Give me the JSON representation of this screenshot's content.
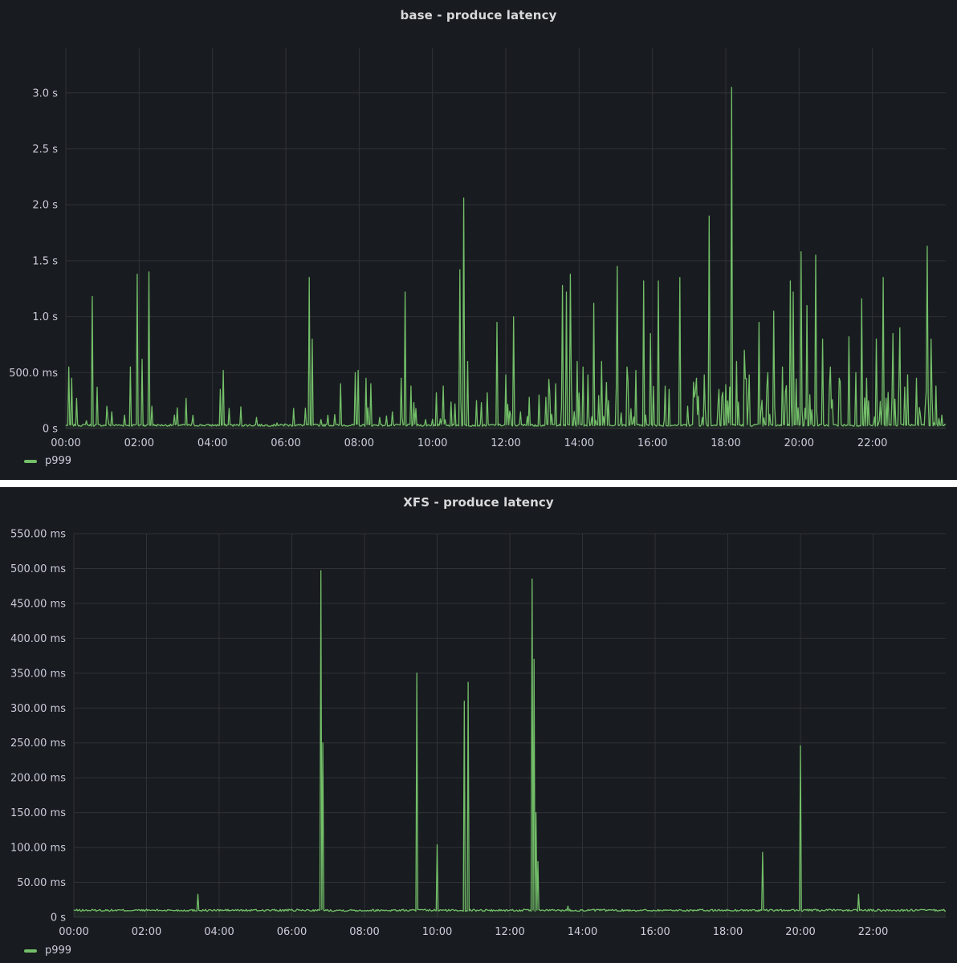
{
  "colors": {
    "series": "#73bf69",
    "grid": "#2f3237",
    "text": "#ccccdc",
    "panel_bg": "#181b1f"
  },
  "chart_data": [
    {
      "type": "line",
      "title": "base - produce latency",
      "xlabel": "",
      "ylabel": "",
      "x_ticks": [
        "00:00",
        "02:00",
        "04:00",
        "06:00",
        "08:00",
        "10:00",
        "12:00",
        "14:00",
        "16:00",
        "18:00",
        "20:00",
        "22:00"
      ],
      "y_ticks": [
        "0 s",
        "500.0 ms",
        "1.0 s",
        "1.5 s",
        "2.0 s",
        "2.5 s",
        "3.0 s"
      ],
      "y_unit": "s",
      "xlim_hours": [
        0,
        24
      ],
      "ylim": [
        0,
        3.4
      ],
      "grid": true,
      "legend": "bottom-left",
      "series": [
        {
          "name": "p999",
          "baseline": 0.02,
          "peaks": [
            [
              0.07,
              0.55
            ],
            [
              0.15,
              0.45
            ],
            [
              0.28,
              0.27
            ],
            [
              0.55,
              0.07
            ],
            [
              0.72,
              1.18
            ],
            [
              0.85,
              0.37
            ],
            [
              1.13,
              0.2
            ],
            [
              1.25,
              0.15
            ],
            [
              1.6,
              0.12
            ],
            [
              1.75,
              0.55
            ],
            [
              1.95,
              1.38
            ],
            [
              2.07,
              0.62
            ],
            [
              2.26,
              1.4
            ],
            [
              2.35,
              0.2
            ],
            [
              2.95,
              0.12
            ],
            [
              3.28,
              0.27
            ],
            [
              3.45,
              0.05
            ],
            [
              4.2,
              0.35
            ],
            [
              4.3,
              0.52
            ],
            [
              4.45,
              0.18
            ],
            [
              5.2,
              0.1
            ],
            [
              5.75,
              0.05
            ],
            [
              6.2,
              0.18
            ],
            [
              6.65,
              1.35
            ],
            [
              6.72,
              0.8
            ],
            [
              6.95,
              0.08
            ],
            [
              7.15,
              0.12
            ],
            [
              7.5,
              0.4
            ],
            [
              7.9,
              0.5
            ],
            [
              7.97,
              0.52
            ],
            [
              8.2,
              0.45
            ],
            [
              8.32,
              0.4
            ],
            [
              8.55,
              0.1
            ],
            [
              8.9,
              0.15
            ],
            [
              9.15,
              0.45
            ],
            [
              9.25,
              1.22
            ],
            [
              9.4,
              0.38
            ],
            [
              9.55,
              0.18
            ],
            [
              9.8,
              0.08
            ],
            [
              10.1,
              0.32
            ],
            [
              10.3,
              0.38
            ],
            [
              10.6,
              0.22
            ],
            [
              10.75,
              1.42
            ],
            [
              10.85,
              2.06
            ],
            [
              10.95,
              0.6
            ],
            [
              11.2,
              0.25
            ],
            [
              11.5,
              0.32
            ],
            [
              11.75,
              0.95
            ],
            [
              12.0,
              0.48
            ],
            [
              12.2,
              1.0
            ],
            [
              12.4,
              0.15
            ],
            [
              12.65,
              0.28
            ],
            [
              12.9,
              0.3
            ],
            [
              13.1,
              0.28
            ],
            [
              13.35,
              0.4
            ],
            [
              13.55,
              1.28
            ],
            [
              13.65,
              1.22
            ],
            [
              13.75,
              1.38
            ],
            [
              13.95,
              0.6
            ],
            [
              14.1,
              0.55
            ],
            [
              14.25,
              0.48
            ],
            [
              14.4,
              1.12
            ],
            [
              14.6,
              0.6
            ],
            [
              14.8,
              0.25
            ],
            [
              15.05,
              1.45
            ],
            [
              15.3,
              0.55
            ],
            [
              15.55,
              0.52
            ],
            [
              15.75,
              1.32
            ],
            [
              15.95,
              0.85
            ],
            [
              16.15,
              1.32
            ],
            [
              16.45,
              0.35
            ],
            [
              16.75,
              1.35
            ],
            [
              16.95,
              0.2
            ],
            [
              17.15,
              0.28
            ],
            [
              17.4,
              0.48
            ],
            [
              17.55,
              1.9
            ],
            [
              17.8,
              0.35
            ],
            [
              18.15,
              3.05
            ],
            [
              18.3,
              0.6
            ],
            [
              18.5,
              0.7
            ],
            [
              18.65,
              0.48
            ],
            [
              18.9,
              0.95
            ],
            [
              19.15,
              0.5
            ],
            [
              19.3,
              1.05
            ],
            [
              19.55,
              0.55
            ],
            [
              19.75,
              1.32
            ],
            [
              19.85,
              1.22
            ],
            [
              20.05,
              1.58
            ],
            [
              20.2,
              1.1
            ],
            [
              20.45,
              1.55
            ],
            [
              20.65,
              0.8
            ],
            [
              20.85,
              0.55
            ],
            [
              21.1,
              0.45
            ],
            [
              21.35,
              0.82
            ],
            [
              21.55,
              0.5
            ],
            [
              21.7,
              1.16
            ],
            [
              21.85,
              0.45
            ],
            [
              22.1,
              0.8
            ],
            [
              22.3,
              1.35
            ],
            [
              22.55,
              0.85
            ],
            [
              22.75,
              0.9
            ],
            [
              22.95,
              0.48
            ],
            [
              23.2,
              0.45
            ],
            [
              23.5,
              1.63
            ],
            [
              23.6,
              0.8
            ],
            [
              23.72,
              0.38
            ],
            [
              23.9,
              0.12
            ]
          ]
        }
      ]
    },
    {
      "type": "line",
      "title": "XFS - produce latency",
      "xlabel": "",
      "ylabel": "",
      "x_ticks": [
        "00:00",
        "02:00",
        "04:00",
        "06:00",
        "08:00",
        "10:00",
        "12:00",
        "14:00",
        "16:00",
        "18:00",
        "20:00",
        "22:00"
      ],
      "y_ticks": [
        "0 s",
        "50.00 ms",
        "100.00 ms",
        "150.00 ms",
        "200.00 ms",
        "250.00 ms",
        "300.00 ms",
        "350.00 ms",
        "400.00 ms",
        "450.00 ms",
        "500.00 ms",
        "550.00 ms"
      ],
      "y_unit": "ms",
      "xlim_hours": [
        0,
        24
      ],
      "ylim": [
        0,
        550
      ],
      "grid": true,
      "legend": "bottom-left",
      "series": [
        {
          "name": "p999",
          "baseline": 10,
          "peaks": [
            [
              3.4,
              33
            ],
            [
              6.8,
              497
            ],
            [
              6.86,
              250
            ],
            [
              9.45,
              350
            ],
            [
              10.0,
              104
            ],
            [
              10.75,
              310
            ],
            [
              10.85,
              337
            ],
            [
              12.6,
              485
            ],
            [
              12.66,
              370
            ],
            [
              12.72,
              150
            ],
            [
              12.78,
              80
            ],
            [
              13.6,
              16
            ],
            [
              18.95,
              93
            ],
            [
              20.0,
              246
            ],
            [
              21.6,
              33
            ]
          ]
        }
      ]
    }
  ]
}
